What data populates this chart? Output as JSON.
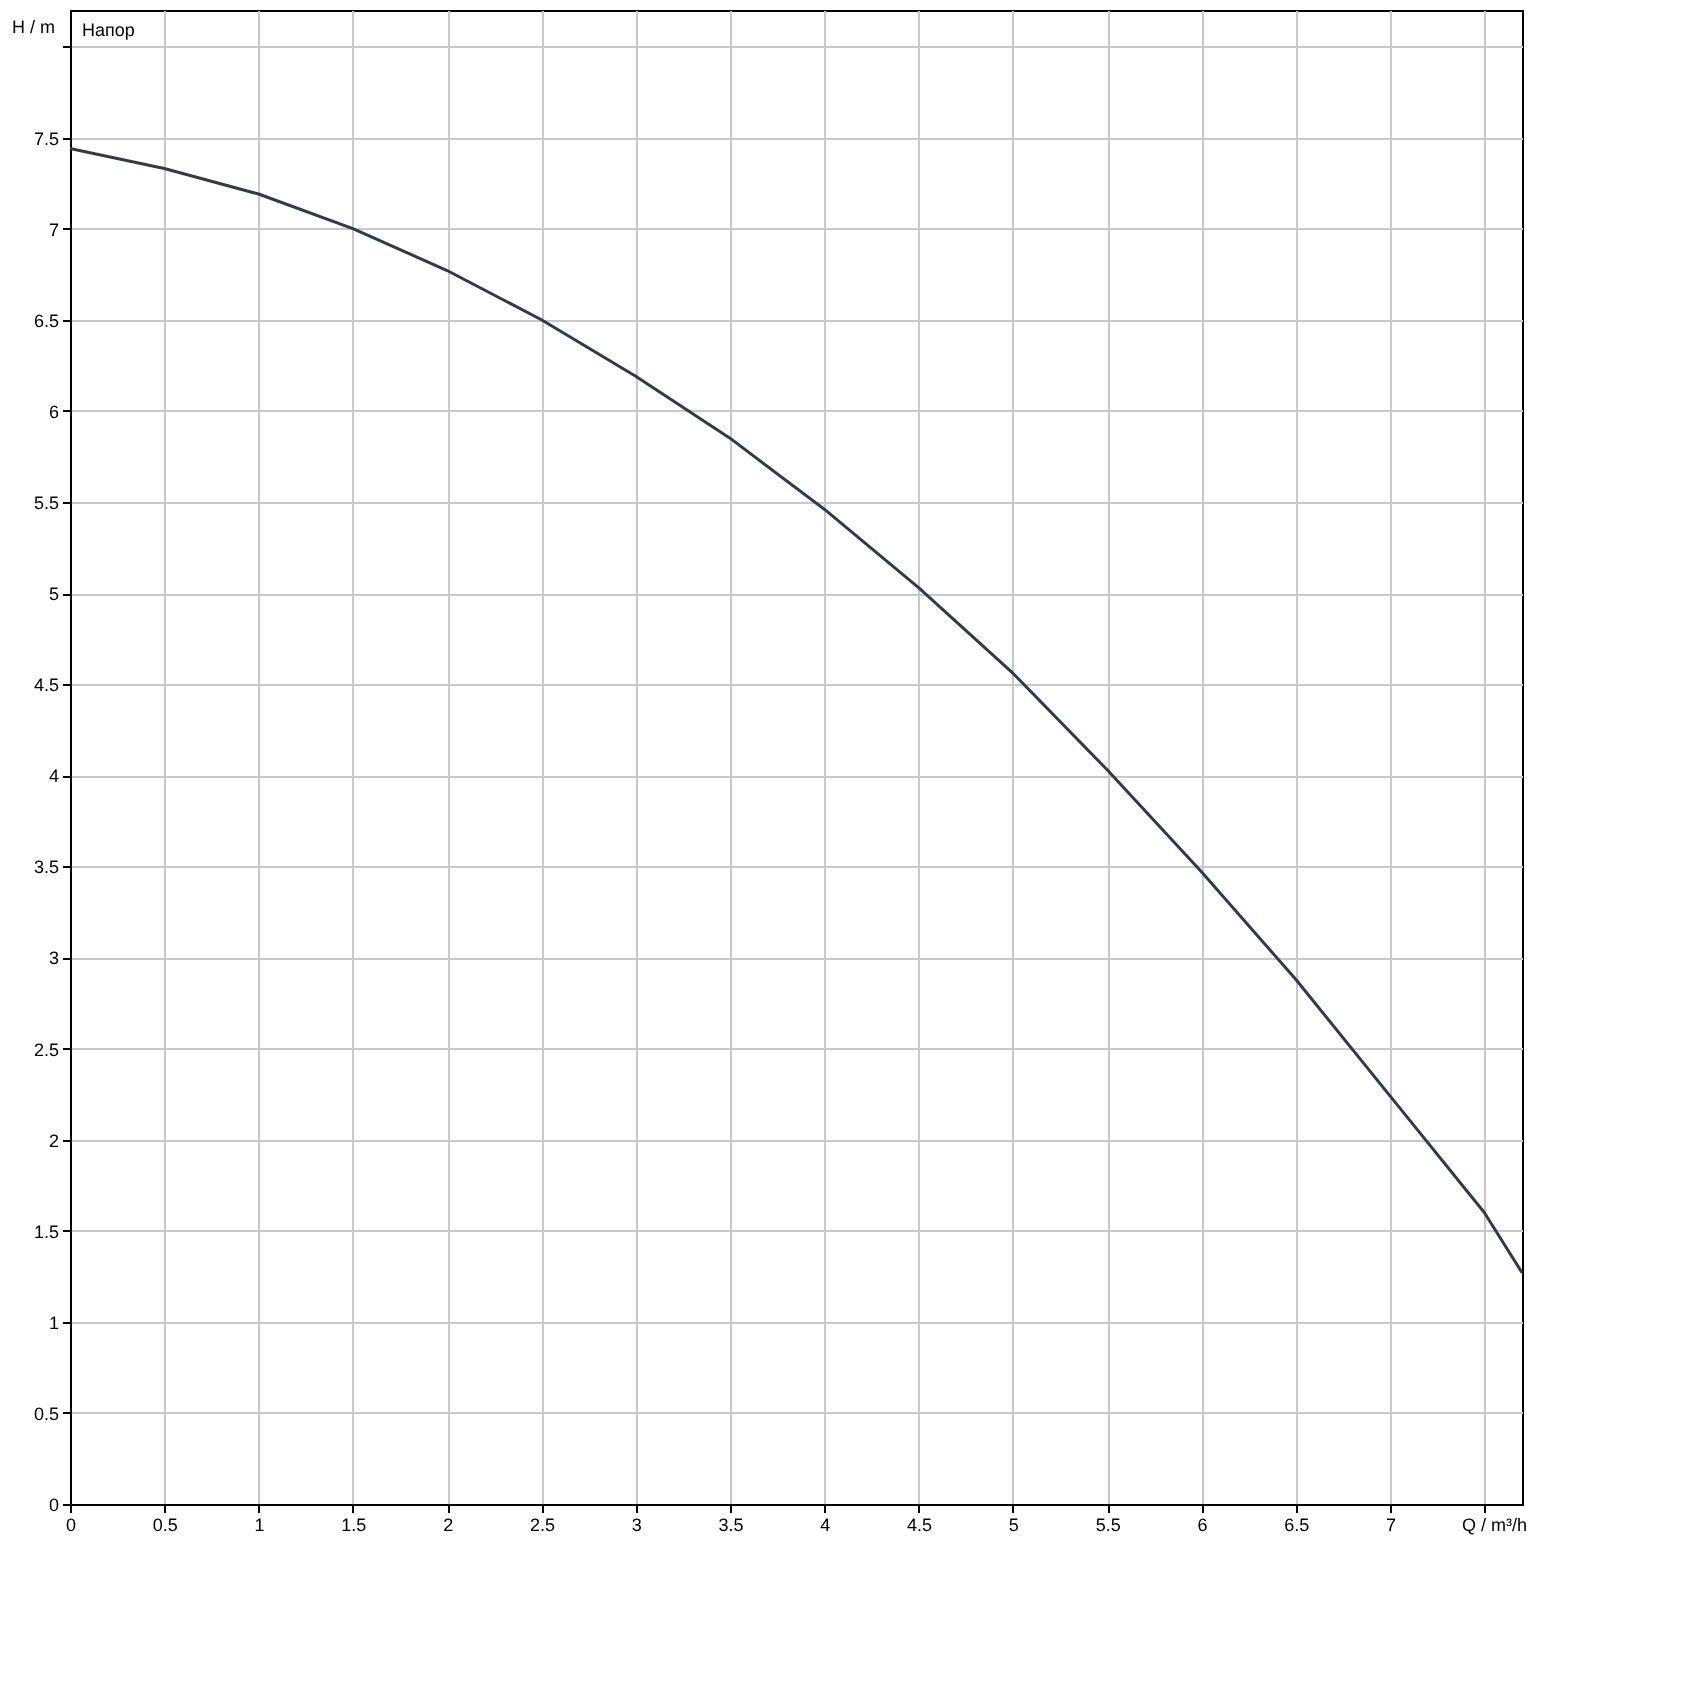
{
  "chart_data": {
    "type": "line",
    "xlabel": "Q / m³/h",
    "ylabel": "H / m",
    "annotations": [
      "Напор"
    ],
    "x": [
      0,
      0.5,
      1,
      1.5,
      2,
      2.5,
      3,
      3.5,
      4,
      4.5,
      5,
      5.5,
      6,
      6.5,
      7,
      7.5,
      7.7
    ],
    "series": [
      {
        "color": "#333a44",
        "values": [
          7.44,
          7.33,
          7.19,
          7.0,
          6.77,
          6.5,
          6.19,
          5.85,
          5.46,
          5.03,
          4.56,
          4.03,
          3.47,
          2.88,
          2.24,
          1.6,
          1.27
        ]
      }
    ],
    "xlim": [
      0,
      7.7
    ],
    "ylim": [
      0,
      8.2
    ],
    "xticks": [
      0,
      0.5,
      1,
      1.5,
      2,
      2.5,
      3,
      3.5,
      4,
      4.5,
      5,
      5.5,
      6,
      6.5,
      7,
      {
        "value": 7.5,
        "label": null
      }
    ],
    "yticks": [
      0,
      0.5,
      1,
      1.5,
      2,
      2.5,
      3,
      3.5,
      4,
      4.5,
      5,
      5.5,
      6,
      6.5,
      7,
      7.5,
      {
        "value": 8,
        "label": null
      }
    ],
    "grid": true,
    "marker": "none",
    "line_style": "solid"
  }
}
